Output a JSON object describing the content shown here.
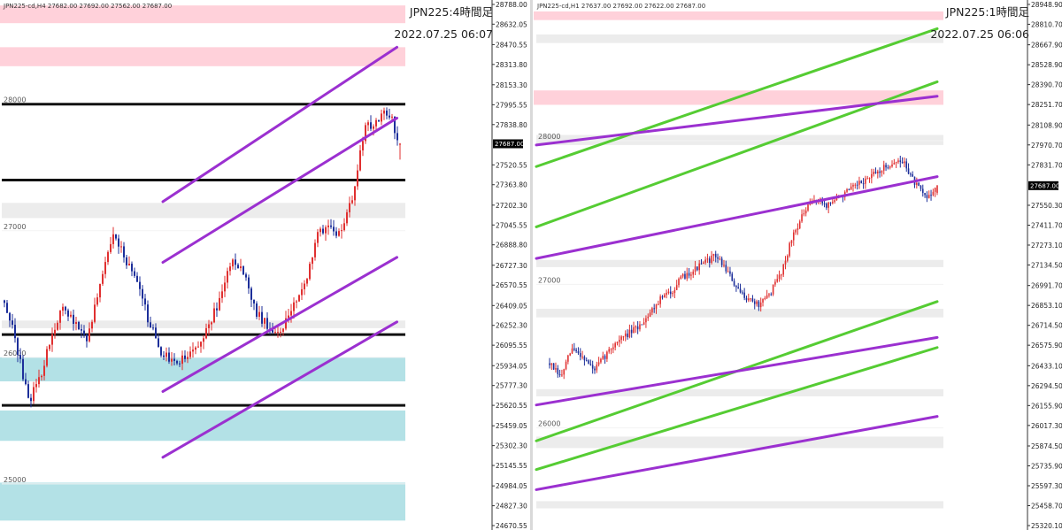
{
  "charts": [
    {
      "id": "h4",
      "symbol_info": "JPN225-cd,H4  27682.00 27692.00 27562.00 27687.00",
      "title": "JPN225:4時間足",
      "datetime": "2022.07.25 06:07",
      "current_price_label": "27687.00",
      "axis_labels": [
        "28788.00",
        "28632.05",
        "28470.55",
        "28313.80",
        "28153.30",
        "27995.55",
        "27838.80",
        "27520.55",
        "27363.80",
        "27202.30",
        "27045.55",
        "26888.80",
        "26727.30",
        "26570.55",
        "26409.05",
        "26252.30",
        "26095.55",
        "25934.05",
        "25777.30",
        "25620.55",
        "25459.05",
        "25302.30",
        "25145.55",
        "24984.05",
        "24827.30",
        "24670.55"
      ],
      "level_labels": [
        "28000",
        "27000",
        "26000",
        "25000"
      ]
    },
    {
      "id": "h1",
      "symbol_info": "JPN225-cd,H1  27637.00 27692.00 27622.00 27687.00",
      "title": "JPN225:1時間足",
      "datetime": "2022.07.25 06:06",
      "current_price_label": "27687.00",
      "axis_labels": [
        "28948.90",
        "28810.70",
        "28667.90",
        "28528.90",
        "28390.70",
        "28251.70",
        "28108.90",
        "27970.70",
        "27831.70",
        "27550.30",
        "27411.70",
        "27273.10",
        "27134.50",
        "26991.70",
        "26853.10",
        "26714.50",
        "26575.90",
        "26433.10",
        "26294.50",
        "26155.90",
        "26017.30",
        "25874.50",
        "25735.90",
        "25597.30",
        "25458.70",
        "25320.10"
      ],
      "level_labels": [
        "28000",
        "27000",
        "26000"
      ]
    }
  ],
  "chart_data": [
    {
      "type": "candlestick",
      "title": "JPN225:4時間足",
      "symbol": "JPN225-cd",
      "timeframe": "H4",
      "last_bar": {
        "open": 27682.0,
        "high": 27692.0,
        "low": 27562.0,
        "close": 27687.0
      },
      "current_price": 27687.0,
      "ylim": [
        24670.55,
        28788.0
      ],
      "y_ticks": [
        28788.0,
        28632.05,
        28470.55,
        28313.8,
        28153.3,
        27995.55,
        27838.8,
        27520.55,
        27363.8,
        27202.3,
        27045.55,
        26888.8,
        26727.3,
        26570.55,
        26409.05,
        26252.3,
        26095.55,
        25934.05,
        25777.3,
        25620.55,
        25459.05,
        25302.3,
        25145.55,
        24984.05,
        24827.3,
        24670.55
      ],
      "close_path_approx": [
        26450,
        26100,
        25650,
        25850,
        26200,
        26400,
        26250,
        26150,
        26600,
        26950,
        26800,
        26600,
        26300,
        26050,
        25950,
        26000,
        26050,
        26250,
        26450,
        26800,
        26650,
        26350,
        26250,
        26200,
        26400,
        26550,
        26950,
        27050,
        26950,
        27250,
        27800,
        27850,
        27950,
        27687
      ],
      "horizontal_levels": [
        28000,
        27400,
        26180,
        25620
      ],
      "resistance_zones": [
        [
          28640,
          28780
        ],
        [
          28300,
          28450
        ]
      ],
      "support_zones": [
        [
          25810,
          26000
        ],
        [
          25340,
          25580
        ],
        [
          24710,
          25010
        ]
      ],
      "neutral_zones": [
        [
          27100,
          27220
        ],
        [
          26230,
          26290
        ]
      ],
      "trend_lines": [
        {
          "color": "#9b30d0",
          "from": [
            0.23,
            27230
          ],
          "to": [
            0.99,
            28450
          ]
        },
        {
          "color": "#9b30d0",
          "from": [
            0.23,
            26750
          ],
          "to": [
            0.99,
            27890
          ]
        },
        {
          "color": "#9b30d0",
          "from": [
            0.23,
            25730
          ],
          "to": [
            0.99,
            26790
          ]
        },
        {
          "color": "#9b30d0",
          "from": [
            0.23,
            25210
          ],
          "to": [
            0.99,
            26280
          ]
        }
      ]
    },
    {
      "type": "candlestick",
      "title": "JPN225:1時間足",
      "symbol": "JPN225-cd",
      "timeframe": "H1",
      "last_bar": {
        "open": 27637.0,
        "high": 27692.0,
        "low": 27622.0,
        "close": 27687.0
      },
      "current_price": 27687.0,
      "ylim": [
        25320.1,
        28948.9
      ],
      "y_ticks": [
        28948.9,
        28810.7,
        28667.9,
        28528.9,
        28390.7,
        28251.7,
        28108.9,
        27970.7,
        27831.7,
        27550.3,
        27411.7,
        27273.1,
        27134.5,
        26991.7,
        26853.1,
        26714.5,
        26575.9,
        26433.1,
        26294.5,
        26155.9,
        26017.3,
        25874.5,
        25735.9,
        25597.3,
        25458.7,
        25320.1
      ],
      "close_path_approx": [
        26450,
        26350,
        26550,
        26500,
        26400,
        26500,
        26600,
        26650,
        26700,
        26800,
        26900,
        26950,
        27050,
        27100,
        27150,
        27200,
        27100,
        26950,
        26900,
        26850,
        26950,
        27100,
        27350,
        27500,
        27600,
        27550,
        27600,
        27650,
        27700,
        27750,
        27800,
        27850,
        27850,
        27700,
        27600,
        27687
      ],
      "horizontal_levels": [],
      "resistance_zones": [
        [
          28840,
          28900
        ],
        [
          28250,
          28350
        ]
      ],
      "support_zones": [],
      "neutral_zones": [
        [
          28680,
          28740
        ],
        [
          27970,
          28040
        ],
        [
          27120,
          27170
        ],
        [
          26770,
          26830
        ],
        [
          26220,
          26270
        ],
        [
          25860,
          25940
        ],
        [
          25440,
          25490
        ]
      ],
      "trend_lines": [
        {
          "color": "#55cc33",
          "from": [
            0,
            27820
          ],
          "to": [
            1,
            28780
          ]
        },
        {
          "color": "#55cc33",
          "from": [
            0,
            27400
          ],
          "to": [
            1,
            28410
          ]
        },
        {
          "color": "#55cc33",
          "from": [
            0,
            25910
          ],
          "to": [
            1,
            26880
          ]
        },
        {
          "color": "#55cc33",
          "from": [
            0,
            25710
          ],
          "to": [
            1,
            26560
          ]
        },
        {
          "color": "#9b30d0",
          "from": [
            0,
            27970
          ],
          "to": [
            1,
            28310
          ]
        },
        {
          "color": "#9b30d0",
          "from": [
            0,
            27180
          ],
          "to": [
            1,
            27750
          ]
        },
        {
          "color": "#9b30d0",
          "from": [
            0,
            26160
          ],
          "to": [
            1,
            26630
          ]
        },
        {
          "color": "#9b30d0",
          "from": [
            0,
            25570
          ],
          "to": [
            1,
            26080
          ]
        }
      ]
    }
  ]
}
